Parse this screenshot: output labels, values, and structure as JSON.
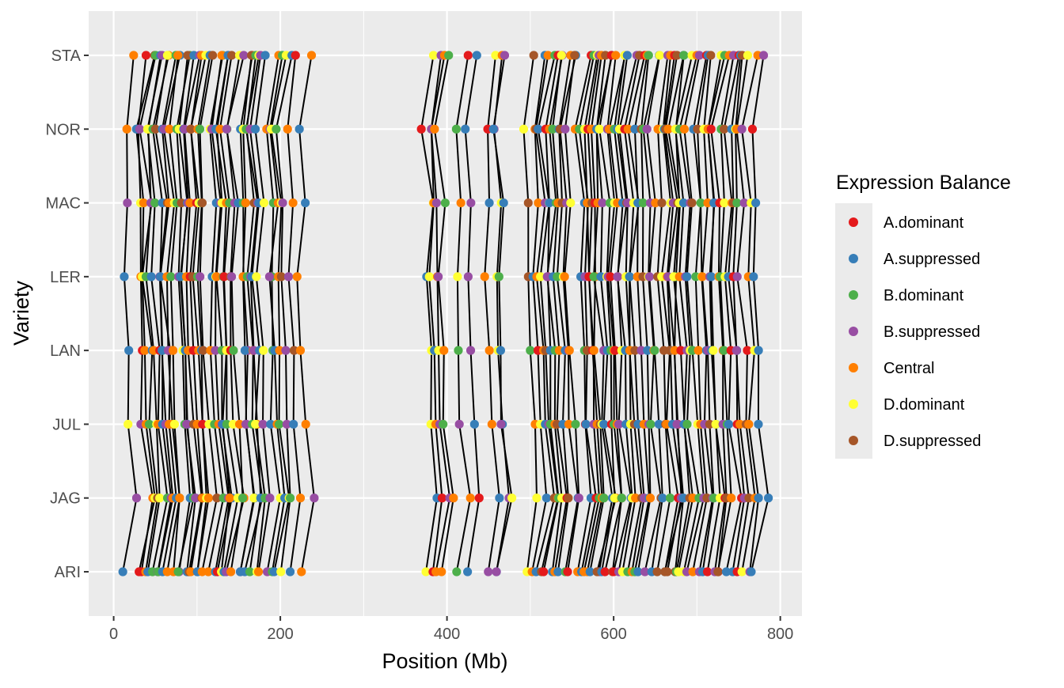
{
  "chart_data": {
    "type": "scatter",
    "xlabel": "Position (Mb)",
    "ylabel": "Variety",
    "x_ticks": [
      0,
      200,
      400,
      600,
      800
    ],
    "xlim": [
      -30,
      826
    ],
    "categories": [
      "ARI",
      "JAG",
      "JUL",
      "LAN",
      "LER",
      "MAC",
      "NOR",
      "STA"
    ],
    "legend": {
      "title": "Expression Balance",
      "placement": "right",
      "entries": [
        {
          "label": "A.dominant",
          "color": "#e41a1c"
        },
        {
          "label": "A.suppressed",
          "color": "#377eb8"
        },
        {
          "label": "B.dominant",
          "color": "#4daf4a"
        },
        {
          "label": "B.suppressed",
          "color": "#984ea3"
        },
        {
          "label": "Central",
          "color": "#ff7f00"
        },
        {
          "label": "D.dominant",
          "color": "#ffff33"
        },
        {
          "label": "D.suppressed",
          "color": "#a65628"
        }
      ]
    },
    "colors": {
      "panel": "#ebebeb",
      "grid_major": "#ffffff",
      "axis_text": "#4d4d4d",
      "lines": "#000000"
    },
    "reference_positions": [
      15,
      30,
      34,
      38,
      42,
      47,
      52,
      56,
      60,
      64,
      68,
      76,
      80,
      84,
      88,
      93,
      97,
      101,
      105,
      115,
      120,
      124,
      128,
      133,
      138,
      142,
      152,
      156,
      160,
      164,
      168,
      172,
      186,
      191,
      195,
      200,
      208,
      222,
      375,
      381,
      386,
      390,
      412,
      427,
      448,
      457,
      461,
      496,
      505,
      510,
      515,
      519,
      524,
      529,
      534,
      539,
      545,
      559,
      563,
      567,
      571,
      575,
      580,
      584,
      589,
      593,
      598,
      602,
      607,
      612,
      618,
      622,
      628,
      633,
      640,
      645,
      655,
      660,
      664,
      668,
      672,
      676,
      681,
      686,
      691,
      696,
      703,
      708,
      713,
      718,
      723,
      728,
      735,
      741,
      746,
      752,
      760,
      768
    ],
    "series": [
      {
        "name": "ARI",
        "shift": 0,
        "colors": [
          1,
          0,
          0,
          4,
          1,
          2,
          3,
          2,
          1,
          4,
          4,
          3,
          2,
          1,
          6,
          4,
          6,
          1,
          4,
          4,
          1,
          0,
          5,
          1,
          3,
          4,
          3,
          1,
          1,
          2,
          5,
          4,
          3,
          2,
          1,
          5,
          1,
          4,
          5,
          0,
          4,
          4,
          2,
          1,
          3,
          1,
          3,
          5,
          4,
          1,
          6,
          0,
          1,
          4,
          1,
          2,
          0,
          4,
          1,
          4,
          4,
          1,
          3,
          6,
          1,
          0,
          6,
          0,
          3,
          5,
          2,
          4,
          2,
          1,
          3,
          1,
          6,
          1,
          6,
          6,
          6,
          2,
          5,
          5,
          3,
          4,
          3,
          1,
          0,
          3,
          0,
          6,
          1,
          1,
          0,
          5,
          3,
          1
        ]
      },
      {
        "name": "JAG",
        "shift": 15,
        "colors": [
          3,
          4,
          5,
          6,
          5,
          2,
          3,
          4,
          1,
          2,
          4,
          1,
          2,
          3,
          6,
          4,
          5,
          4,
          6,
          2,
          3,
          1,
          4,
          5,
          4,
          2,
          1,
          5,
          4,
          1,
          2,
          3,
          5,
          1,
          5,
          2,
          4,
          3,
          1,
          0,
          3,
          4,
          4,
          0,
          1,
          3,
          5,
          5,
          1,
          6,
          4,
          2,
          5,
          0,
          6,
          1,
          3,
          1,
          0,
          2,
          4,
          2,
          1,
          4,
          5,
          6,
          2,
          1,
          5,
          4,
          6,
          3,
          1,
          4,
          6,
          1,
          2,
          0,
          5,
          3,
          1,
          6,
          4,
          2,
          3,
          6,
          3,
          2,
          5,
          0,
          6,
          4,
          0,
          3,
          6,
          4,
          1,
          1
        ]
      },
      {
        "name": "JUL",
        "shift": 6,
        "colors": [
          5,
          3,
          4,
          2,
          5,
          4,
          1,
          3,
          4,
          4,
          5,
          2,
          1,
          3,
          6,
          4,
          1,
          0,
          5,
          2,
          4,
          3,
          1,
          2,
          5,
          4,
          3,
          3,
          2,
          4,
          5,
          3,
          1,
          4,
          2,
          3,
          1,
          4,
          5,
          4,
          3,
          2,
          3,
          1,
          4,
          1,
          3,
          4,
          5,
          1,
          3,
          2,
          4,
          6,
          1,
          4,
          2,
          0,
          1,
          3,
          4,
          6,
          5,
          1,
          0,
          2,
          4,
          3,
          1,
          5,
          6,
          1,
          4,
          3,
          2,
          1,
          6,
          4,
          1,
          0,
          3,
          6,
          1,
          2,
          5,
          4,
          3,
          6,
          1,
          5,
          3,
          2,
          1,
          0,
          4,
          6,
          4,
          1
        ]
      },
      {
        "name": "LAN",
        "shift": 5,
        "colors": [
          1,
          0,
          4,
          1,
          4,
          0,
          2,
          1,
          4,
          3,
          4,
          5,
          2,
          1,
          4,
          0,
          4,
          1,
          6,
          4,
          3,
          2,
          6,
          5,
          0,
          2,
          3,
          1,
          4,
          3,
          1,
          5,
          2,
          1,
          4,
          3,
          6,
          4,
          5,
          1,
          5,
          4,
          2,
          3,
          4,
          5,
          1,
          2,
          0,
          4,
          6,
          1,
          2,
          4,
          1,
          3,
          4,
          2,
          6,
          1,
          0,
          4,
          3,
          1,
          2,
          4,
          0,
          5,
          1,
          2,
          4,
          6,
          3,
          1,
          4,
          2,
          6,
          6,
          6,
          1,
          4,
          0,
          3,
          5,
          2,
          4,
          1,
          3,
          1,
          5,
          4,
          2,
          0,
          1,
          3,
          0,
          5,
          1
        ]
      },
      {
        "name": "LER",
        "shift": 0,
        "colors": [
          1,
          4,
          3,
          5,
          2,
          1,
          4,
          3,
          1,
          4,
          2,
          3,
          5,
          1,
          4,
          0,
          6,
          2,
          3,
          1,
          5,
          4,
          2,
          0,
          6,
          3,
          1,
          4,
          2,
          3,
          1,
          5,
          2,
          3,
          4,
          6,
          3,
          4,
          1,
          5,
          4,
          3,
          5,
          3,
          4,
          5,
          2,
          6,
          1,
          4,
          5,
          0,
          3,
          1,
          2,
          5,
          4,
          1,
          3,
          6,
          0,
          4,
          2,
          1,
          5,
          3,
          0,
          4,
          3,
          5,
          2,
          1,
          4,
          6,
          5,
          3,
          6,
          5,
          4,
          3,
          2,
          5,
          4,
          3,
          1,
          2,
          5,
          4,
          3,
          1,
          4,
          2,
          5,
          1,
          0,
          3,
          4,
          1
        ]
      },
      {
        "name": "MAC",
        "shift": 5,
        "colors": [
          3,
          5,
          4,
          6,
          3,
          2,
          1,
          6,
          4,
          5,
          2,
          6,
          1,
          3,
          4,
          0,
          5,
          2,
          6,
          1,
          3,
          5,
          4,
          2,
          3,
          1,
          2,
          4,
          6,
          3,
          1,
          5,
          2,
          4,
          5,
          3,
          4,
          1,
          5,
          4,
          3,
          2,
          4,
          3,
          1,
          5,
          1,
          6,
          4,
          3,
          5,
          1,
          2,
          4,
          6,
          3,
          5,
          1,
          2,
          4,
          6,
          0,
          4,
          3,
          2,
          5,
          4,
          1,
          6,
          3,
          5,
          4,
          1,
          2,
          3,
          4,
          6,
          5,
          3,
          6,
          4,
          5,
          1,
          3,
          6,
          5,
          2,
          4,
          3,
          1,
          0,
          5,
          4,
          6,
          2,
          3,
          5,
          1
        ]
      },
      {
        "name": "NOR",
        "shift": -3,
        "colors": [
          4,
          3,
          1,
          3,
          4,
          5,
          2,
          6,
          1,
          3,
          4,
          2,
          5,
          1,
          3,
          4,
          6,
          4,
          2,
          5,
          3,
          6,
          1,
          4,
          2,
          3,
          1,
          5,
          4,
          2,
          3,
          1,
          4,
          3,
          5,
          2,
          4,
          1,
          0,
          5,
          3,
          4,
          2,
          1,
          0,
          3,
          1,
          5,
          4,
          6,
          1,
          0,
          4,
          2,
          1,
          6,
          3,
          4,
          2,
          5,
          0,
          4,
          6,
          1,
          5,
          3,
          4,
          2,
          1,
          5,
          0,
          4,
          1,
          6,
          2,
          3,
          4,
          5,
          1,
          6,
          4,
          3,
          5,
          2,
          4,
          1,
          6,
          5,
          3,
          4,
          0,
          2,
          6,
          1,
          5,
          4,
          3,
          0
        ]
      },
      {
        "name": "STA",
        "shift": 12,
        "colors": [
          4,
          0,
          6,
          2,
          1,
          3,
          4,
          5,
          2,
          1,
          4,
          2,
          6,
          1,
          3,
          4,
          5,
          1,
          6,
          2,
          4,
          3,
          1,
          6,
          5,
          3,
          4,
          6,
          2,
          5,
          3,
          1,
          4,
          2,
          5,
          1,
          0,
          4,
          5,
          3,
          4,
          2,
          0,
          1,
          5,
          4,
          3,
          6,
          1,
          4,
          2,
          0,
          3,
          5,
          4,
          1,
          6,
          0,
          2,
          5,
          3,
          4,
          6,
          1,
          0,
          4,
          2,
          5,
          1,
          3,
          6,
          0,
          4,
          2,
          1,
          5,
          3,
          4,
          0,
          6,
          1,
          2,
          5,
          4,
          3,
          0,
          1,
          6,
          5,
          2,
          4,
          3,
          0,
          1,
          6,
          5,
          4,
          3
        ]
      }
    ]
  }
}
